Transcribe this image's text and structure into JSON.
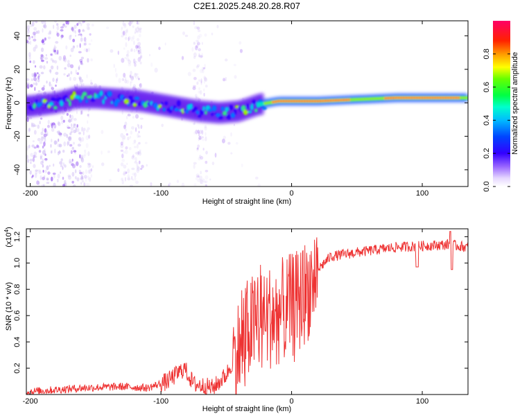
{
  "title": "C2E1.2025.248.20.28.R07",
  "chart_data": [
    {
      "type": "heatmap",
      "title": "C2E1.2025.248.20.28.R07",
      "xlabel": "Height of straight line (km)",
      "ylabel": "Frequency (Hz)",
      "xlim": [
        -203,
        135
      ],
      "ylim": [
        -50,
        49
      ],
      "xticks": [
        -200,
        -100,
        0,
        100
      ],
      "yticks": [
        -40,
        -20,
        0,
        20,
        40
      ],
      "colorbar": {
        "label": "Normalized spectral amplitude",
        "range": [
          0,
          1
        ],
        "ticks": [
          0.0,
          0.2,
          0.4,
          0.6,
          0.8
        ]
      },
      "ridge": [
        {
          "x": -200,
          "y": -2
        },
        {
          "x": -180,
          "y": 0
        },
        {
          "x": -165,
          "y": 3
        },
        {
          "x": -150,
          "y": 3
        },
        {
          "x": -130,
          "y": 2
        },
        {
          "x": -115,
          "y": 1
        },
        {
          "x": -100,
          "y": -1
        },
        {
          "x": -85,
          "y": -3
        },
        {
          "x": -70,
          "y": -5
        },
        {
          "x": -55,
          "y": -6
        },
        {
          "x": -40,
          "y": -5
        },
        {
          "x": -25,
          "y": -1
        },
        {
          "x": -10,
          "y": 1
        },
        {
          "x": 0,
          "y": 1
        },
        {
          "x": 20,
          "y": 1
        },
        {
          "x": 50,
          "y": 2
        },
        {
          "x": 80,
          "y": 3
        },
        {
          "x": 100,
          "y": 3
        },
        {
          "x": 135,
          "y": 3
        }
      ]
    },
    {
      "type": "line",
      "xlabel": "Height of straight line (km)",
      "ylabel": "SNR (10 * v/v)",
      "scale_note": "(x10",
      "scale_exp": "4",
      "scale_close": ")",
      "xlim": [
        -203,
        135
      ],
      "ylim": [
        0,
        1.26
      ],
      "xticks": [
        -200,
        -100,
        0,
        100
      ],
      "yticks": [
        0.2,
        0.4,
        0.6,
        0.8,
        1.0,
        1.2
      ],
      "color": "#ee3333",
      "trend": [
        {
          "x": -203,
          "y": 0.02
        },
        {
          "x": -160,
          "y": 0.05
        },
        {
          "x": -130,
          "y": 0.06
        },
        {
          "x": -110,
          "y": 0.05
        },
        {
          "x": -95,
          "y": 0.1
        },
        {
          "x": -82,
          "y": 0.2
        },
        {
          "x": -75,
          "y": 0.08
        },
        {
          "x": -60,
          "y": 0.05
        },
        {
          "x": -50,
          "y": 0.15
        },
        {
          "x": -40,
          "y": 0.35
        },
        {
          "x": -33,
          "y": 0.5
        },
        {
          "x": -25,
          "y": 0.55
        },
        {
          "x": -15,
          "y": 0.6
        },
        {
          "x": -5,
          "y": 0.65
        },
        {
          "x": 5,
          "y": 0.7
        },
        {
          "x": 12,
          "y": 0.8
        },
        {
          "x": 20,
          "y": 0.95
        },
        {
          "x": 30,
          "y": 1.05
        },
        {
          "x": 50,
          "y": 1.08
        },
        {
          "x": 80,
          "y": 1.12
        },
        {
          "x": 100,
          "y": 1.13
        },
        {
          "x": 120,
          "y": 1.14
        },
        {
          "x": 135,
          "y": 1.12
        }
      ]
    }
  ]
}
